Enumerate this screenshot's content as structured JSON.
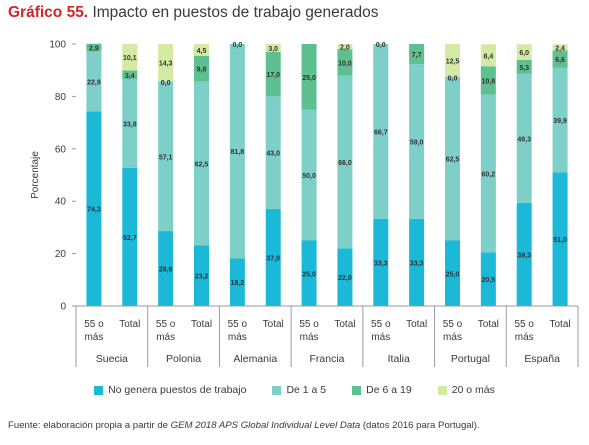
{
  "figure": {
    "label": "Gráfico 55.",
    "title": "Impacto en puestos de trabajo generados",
    "source_prefix": "Fuente: elaboración propia a partir de ",
    "source_italic": "GEM 2018 APS Global Individual Level Data",
    "source_suffix": " (datos 2016 para Portugal)."
  },
  "chart_data": {
    "type": "bar",
    "stacked": true,
    "ylabel": "Porcentaje",
    "ylim": [
      0,
      100
    ],
    "yticks": [
      0,
      20,
      40,
      60,
      80,
      100
    ],
    "groups": [
      "Suecia",
      "Polonia",
      "Alemania",
      "Francia",
      "Italia",
      "Portugal",
      "España"
    ],
    "bar_labels": [
      "55 o más",
      "Total"
    ],
    "categories": [
      "Suecia 55 o más",
      "Suecia Total",
      "Polonia 55 o más",
      "Polonia Total",
      "Alemania 55 o más",
      "Alemania Total",
      "Francia 55 o más",
      "Francia Total",
      "Italia 55 o más",
      "Italia Total",
      "Portugal 55 o más",
      "Portugal Total",
      "España 55 o más",
      "España Total"
    ],
    "series": [
      {
        "name": "No genera puestos de trabajo",
        "color": "#1bb8d8",
        "values": [
          74.3,
          52.7,
          28.6,
          23.2,
          18.2,
          37.0,
          25.0,
          22.0,
          33.3,
          33.3,
          25.0,
          20.5,
          39.3,
          51.0
        ]
      },
      {
        "name": "De 1 a 5",
        "color": "#7dcfc8",
        "values": [
          22.9,
          33.8,
          57.1,
          62.5,
          81.8,
          43.0,
          50.0,
          66.0,
          66.7,
          59.0,
          62.5,
          60.2,
          49.3,
          39.9
        ]
      },
      {
        "name": "De 6 a 19",
        "color": "#5fc08f",
        "values": [
          2.9,
          3.4,
          0.0,
          9.8,
          0.0,
          17.0,
          25.0,
          10.0,
          0.0,
          7.7,
          0.0,
          10.8,
          5.3,
          6.6
        ]
      },
      {
        "name": "20 o más",
        "color": "#d4e9a3",
        "values": [
          0.0,
          10.1,
          14.3,
          4.5,
          0.0,
          3.0,
          0.0,
          2.0,
          0.0,
          0.0,
          12.5,
          8.4,
          6.0,
          2.4
        ]
      }
    ],
    "grid": false,
    "legend_position": "bottom"
  }
}
